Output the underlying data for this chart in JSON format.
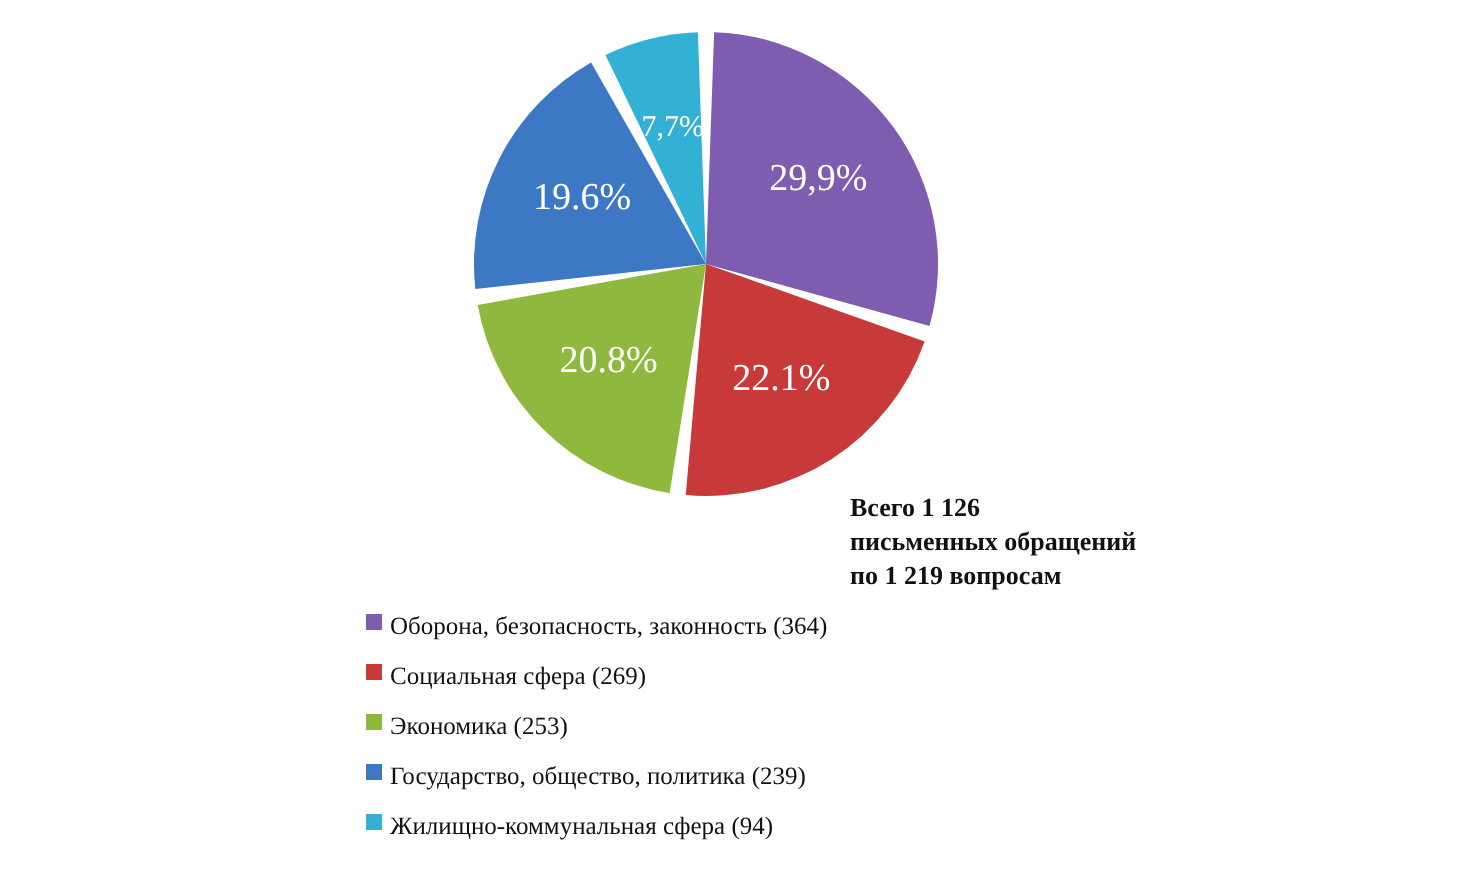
{
  "chart_data": {
    "type": "pie",
    "categories": [
      "Оборона, безопасность, законность (364)",
      "Социальная сфера (269)",
      "Экономика (253)",
      "Государство, общество, политика (239)",
      "Жилищно-коммунальная сфера (94)"
    ],
    "values": [
      29.9,
      22.1,
      20.8,
      19.6,
      7.7
    ],
    "value_labels": [
      "29,9%",
      "22.1%",
      "20.8%",
      "19.6%",
      "7,7%"
    ],
    "colors": [
      "#7e5cb0",
      "#c8393a",
      "#8fb83e",
      "#3d78c4",
      "#32b1d4"
    ],
    "legend": "bottom left",
    "annotations": [
      "Всего 1 126\nписьменных обращений\nпо 1 219 вопросам"
    ]
  }
}
